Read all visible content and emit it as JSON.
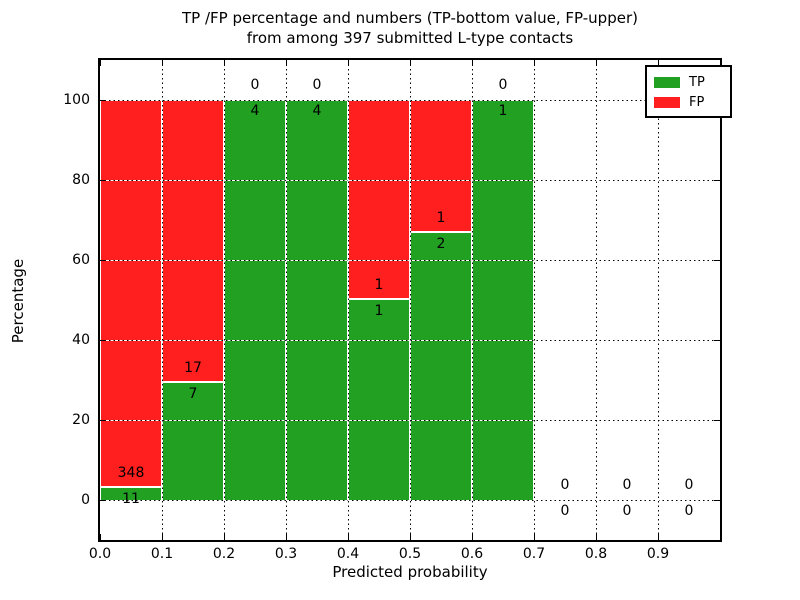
{
  "figure": {
    "title_lines": [
      "TP /FP percentage and numbers (TP-bottom value, FP-upper)",
      "from among 397 submitted L-type contacts"
    ],
    "xlabel": "Predicted probability",
    "ylabel": "Percentage"
  },
  "chart_data": {
    "type": "bar",
    "stacked": true,
    "title": "TP /FP percentage and numbers (TP-bottom value, FP-upper) from among 397 submitted L-type contacts",
    "total_submitted": 397,
    "xlabel": "Predicted probability",
    "ylabel": "Percentage",
    "xlim": [
      0.0,
      1.0
    ],
    "ylim": [
      -10,
      110
    ],
    "xticks": [
      0.0,
      0.1,
      0.2,
      0.3,
      0.4,
      0.5,
      0.6,
      0.7,
      0.8,
      0.9
    ],
    "yticks": [
      0,
      20,
      40,
      60,
      80,
      100
    ],
    "grid": true,
    "legend_position": "upper-right",
    "colors": {
      "tp": "#22a022",
      "fp": "#ff1f1f"
    },
    "legend": [
      {
        "label": "TP",
        "color": "#22a022"
      },
      {
        "label": "FP",
        "color": "#ff1f1f"
      }
    ],
    "bins": [
      {
        "range": [
          0.0,
          0.1
        ],
        "tp": 11,
        "fp": 348,
        "tp_pct": 3.06,
        "fp_pct": 96.94
      },
      {
        "range": [
          0.1,
          0.2
        ],
        "tp": 7,
        "fp": 17,
        "tp_pct": 29.17,
        "fp_pct": 70.83
      },
      {
        "range": [
          0.2,
          0.3
        ],
        "tp": 4,
        "fp": 0,
        "tp_pct": 100,
        "fp_pct": 0
      },
      {
        "range": [
          0.3,
          0.4
        ],
        "tp": 4,
        "fp": 0,
        "tp_pct": 100,
        "fp_pct": 0
      },
      {
        "range": [
          0.4,
          0.5
        ],
        "tp": 1,
        "fp": 1,
        "tp_pct": 50,
        "fp_pct": 50
      },
      {
        "range": [
          0.5,
          0.6
        ],
        "tp": 2,
        "fp": 1,
        "tp_pct": 66.67,
        "fp_pct": 33.33
      },
      {
        "range": [
          0.6,
          0.7
        ],
        "tp": 1,
        "fp": 0,
        "tp_pct": 100,
        "fp_pct": 0
      },
      {
        "range": [
          0.7,
          0.8
        ],
        "tp": 0,
        "fp": 0,
        "tp_pct": 0,
        "fp_pct": 0
      },
      {
        "range": [
          0.8,
          0.9
        ],
        "tp": 0,
        "fp": 0,
        "tp_pct": 0,
        "fp_pct": 0
      },
      {
        "range": [
          0.9,
          1.0
        ],
        "tp": 0,
        "fp": 0,
        "tp_pct": 0,
        "fp_pct": 0
      }
    ]
  }
}
